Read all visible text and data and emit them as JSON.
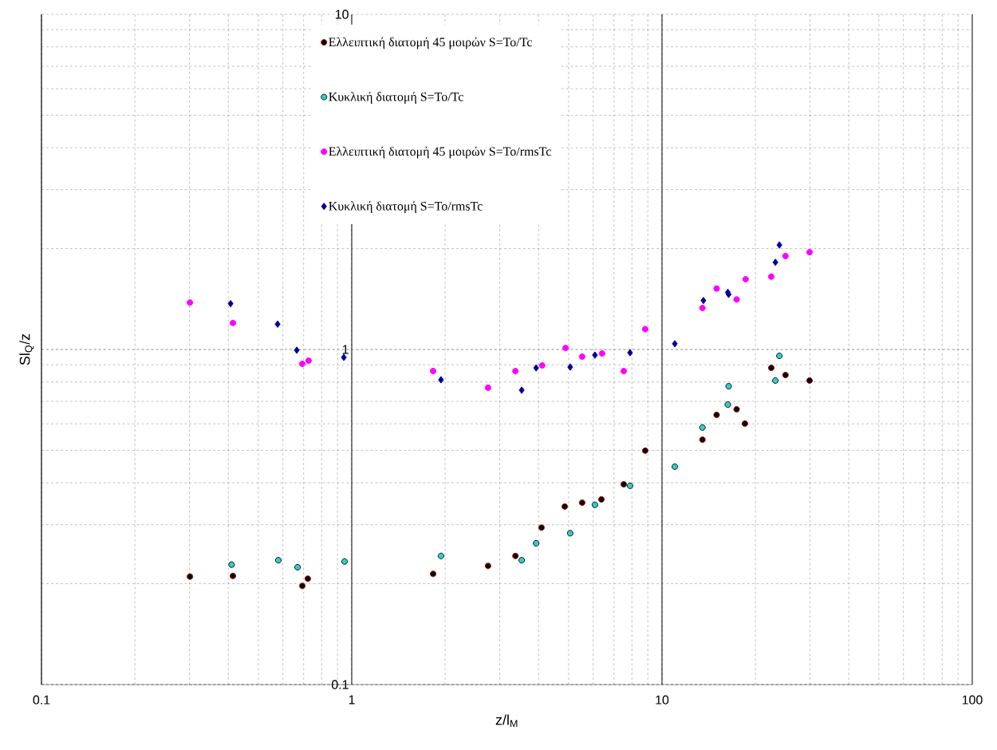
{
  "chart_data": {
    "type": "scatter",
    "xlabel": "z/l$_{M}$",
    "ylabel": "Sl$_{Q}$/z",
    "log": "xy",
    "grid": true,
    "legend": "top",
    "xlim": [
      0.1,
      100
    ],
    "ylim": [
      0.1,
      10
    ],
    "xticks": [
      0.1,
      1,
      10,
      100
    ],
    "yticks": [
      0.1,
      1,
      10
    ],
    "series": [
      {
        "name": "Ελλειπτική διατομή 45 μοιρών S=To/Tc",
        "color": "#000000",
        "marker": "circle",
        "x": [
          0.301,
          0.414,
          0.693,
          0.722,
          1.83,
          2.75,
          3.37,
          4.09,
          4.86,
          5.53,
          6.38,
          7.53,
          8.83,
          13.5,
          15.0,
          17.4,
          18.5,
          22.5,
          25.0,
          29.9
        ],
        "values": [
          0.21,
          0.211,
          0.197,
          0.207,
          0.214,
          0.226,
          0.242,
          0.294,
          0.34,
          0.349,
          0.357,
          0.396,
          0.499,
          0.538,
          0.638,
          0.663,
          0.601,
          0.881,
          0.839,
          0.808
        ]
      },
      {
        "name": "Κυκλική διατομή S=To/Tc",
        "color": "#33cccc",
        "marker": "circle",
        "x": [
          0.41,
          0.58,
          0.669,
          0.948,
          1.94,
          3.53,
          3.93,
          5.06,
          6.08,
          7.89,
          11.0,
          13.5,
          16.3,
          16.4,
          23.2,
          23.9
        ],
        "values": [
          0.228,
          0.235,
          0.224,
          0.233,
          0.242,
          0.235,
          0.264,
          0.283,
          0.344,
          0.392,
          0.447,
          0.585,
          0.685,
          0.777,
          0.808,
          0.957
        ]
      },
      {
        "name": "Ελλειπτική διατομή 45 μοιρών S=To/rmsTc",
        "color": "#ff00ff",
        "marker": "circle",
        "x": [
          0.301,
          0.414,
          0.693,
          0.726,
          1.83,
          2.75,
          3.37,
          4.11,
          4.89,
          5.53,
          6.41,
          7.53,
          8.83,
          13.5,
          15.0,
          17.4,
          18.6,
          22.5,
          25.0,
          29.9
        ],
        "values": [
          1.38,
          1.2,
          0.906,
          0.926,
          0.862,
          0.769,
          0.862,
          0.896,
          1.01,
          0.952,
          0.973,
          0.862,
          1.15,
          1.33,
          1.52,
          1.41,
          1.62,
          1.65,
          1.9,
          1.95
        ]
      },
      {
        "name": "Κυκλική διατομή S=To/rmsTc",
        "color": "#000099",
        "marker": "diamond",
        "x": [
          0.407,
          0.577,
          0.665,
          0.943,
          1.94,
          3.53,
          3.93,
          5.06,
          6.08,
          7.89,
          11.0,
          13.6,
          16.3,
          16.4,
          23.2,
          23.9
        ],
        "values": [
          1.37,
          1.19,
          0.995,
          0.947,
          0.812,
          0.756,
          0.881,
          0.886,
          0.962,
          0.978,
          1.04,
          1.4,
          1.48,
          1.46,
          1.82,
          2.05
        ]
      }
    ]
  }
}
